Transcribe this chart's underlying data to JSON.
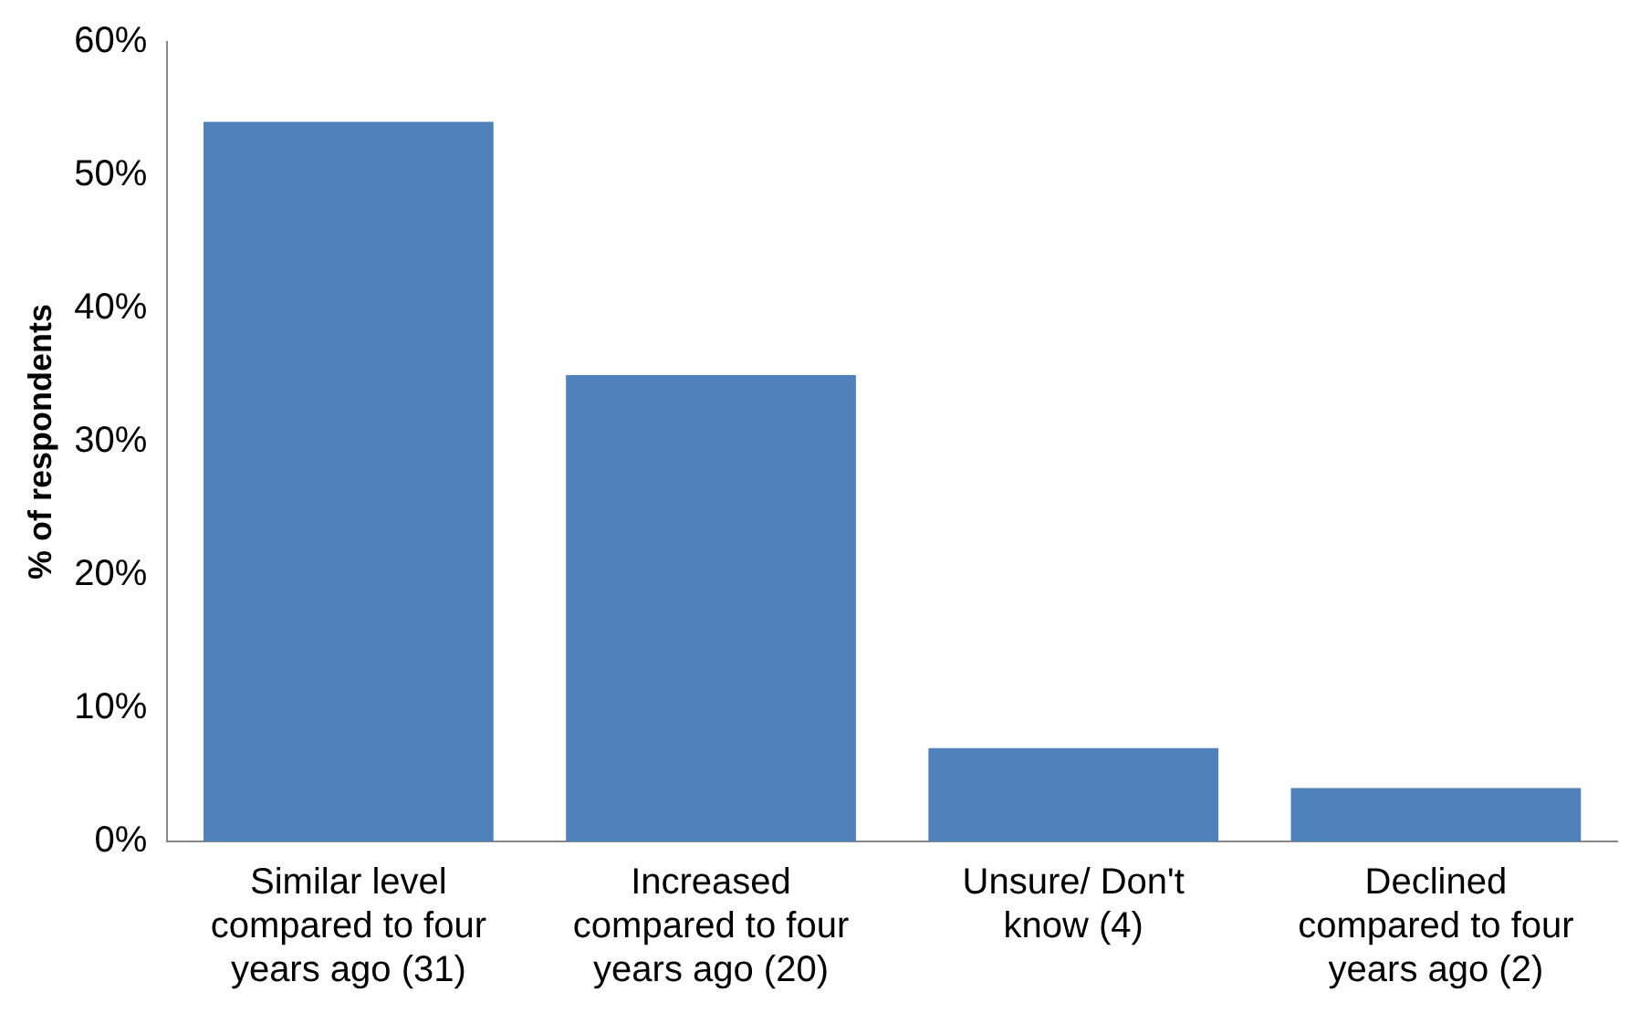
{
  "chart_data": {
    "type": "bar",
    "ylabel": "% of respondents",
    "categories": [
      "Similar level compared to four years ago (31)",
      "Increased compared to four years ago (20)",
      "Unsure/ Don't know (4)",
      "Declined compared to four years ago (2)"
    ],
    "values": [
      54,
      35,
      7,
      4
    ],
    "color": "#4f81bd",
    "ylim": [
      0,
      60
    ],
    "yticks": [
      {
        "value": 0,
        "label": "0%"
      },
      {
        "value": 10,
        "label": "10%"
      },
      {
        "value": 20,
        "label": "20%"
      },
      {
        "value": 30,
        "label": "30%"
      },
      {
        "value": 40,
        "label": "40%"
      },
      {
        "value": 50,
        "label": "50%"
      },
      {
        "value": 60,
        "label": "60%"
      }
    ],
    "grid": false,
    "legend": false
  }
}
